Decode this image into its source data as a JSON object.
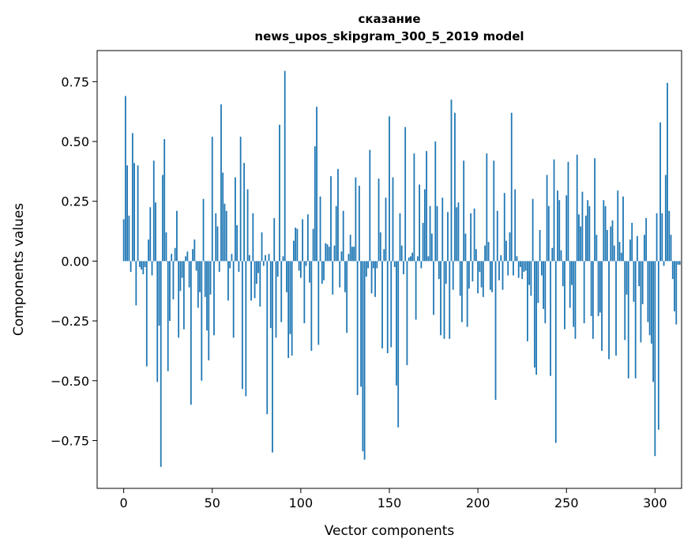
{
  "chart_data": {
    "type": "bar",
    "title": "сказание",
    "subtitle": "news_upos_skipgram_300_5_2019 model",
    "xlabel": "Vector components",
    "ylabel": "Components values",
    "xlim": [
      -15,
      315
    ],
    "ylim": [
      -0.95,
      0.88
    ],
    "xticks": [
      0,
      50,
      100,
      150,
      200,
      250,
      300
    ],
    "yticks": [
      -0.75,
      -0.5,
      -0.25,
      0.0,
      0.25,
      0.5,
      0.75
    ],
    "ytick_labels": [
      "−0.75",
      "−0.50",
      "−0.25",
      "0.00",
      "0.25",
      "0.50",
      "0.75"
    ],
    "bar_color": "#1f77b4",
    "grid": false,
    "values": [
      0.175,
      0.69,
      0.4,
      0.19,
      -0.045,
      0.535,
      0.41,
      -0.185,
      0.4,
      -0.025,
      -0.035,
      -0.055,
      -0.025,
      -0.44,
      0.09,
      0.225,
      -0.06,
      0.42,
      0.245,
      -0.505,
      -0.27,
      -0.86,
      0.36,
      0.51,
      0.12,
      -0.46,
      -0.25,
      0.03,
      -0.16,
      0.055,
      0.21,
      -0.32,
      -0.125,
      -0.07,
      -0.285,
      0.02,
      0.04,
      -0.11,
      -0.6,
      0.05,
      0.09,
      -0.04,
      -0.195,
      -0.13,
      -0.5,
      0.26,
      -0.15,
      -0.29,
      -0.415,
      -0.14,
      0.52,
      -0.31,
      0.2,
      0.145,
      -0.045,
      0.655,
      0.37,
      0.24,
      0.21,
      -0.165,
      -0.03,
      0.03,
      -0.32,
      0.35,
      0.15,
      -0.045,
      0.52,
      -0.535,
      0.41,
      -0.565,
      0.3,
      0.025,
      -0.165,
      0.2,
      -0.155,
      -0.095,
      -0.05,
      -0.19,
      0.12,
      -0.02,
      0.025,
      -0.64,
      0.03,
      -0.28,
      -0.8,
      0.18,
      -0.32,
      -0.065,
      0.57,
      -0.255,
      0.02,
      0.795,
      -0.13,
      -0.405,
      -0.305,
      -0.395,
      0.085,
      0.14,
      0.135,
      -0.04,
      -0.07,
      0.175,
      -0.26,
      -0.02,
      0.195,
      -0.09,
      -0.375,
      0.135,
      0.48,
      0.645,
      -0.35,
      0.27,
      -0.095,
      -0.08,
      0.075,
      0.07,
      0.06,
      0.355,
      -0.14,
      0.065,
      0.23,
      0.385,
      -0.11,
      0.04,
      0.21,
      -0.13,
      -0.3,
      0.03,
      0.11,
      0.06,
      0.06,
      0.35,
      -0.56,
      0.315,
      -0.525,
      -0.795,
      -0.83,
      -0.065,
      -0.03,
      0.465,
      -0.135,
      -0.03,
      -0.15,
      -0.03,
      0.345,
      0.12,
      -0.365,
      0.05,
      0.265,
      -0.385,
      0.605,
      -0.36,
      0.35,
      -0.025,
      -0.52,
      -0.695,
      0.2,
      0.065,
      -0.055,
      0.56,
      -0.435,
      0.015,
      0.02,
      0.035,
      0.45,
      -0.245,
      0.02,
      0.32,
      -0.03,
      0.16,
      0.3,
      0.46,
      0.02,
      0.23,
      0.115,
      -0.225,
      0.5,
      0.23,
      -0.075,
      -0.31,
      0.265,
      -0.325,
      -0.095,
      0.205,
      -0.325,
      0.675,
      -0.12,
      0.62,
      0.225,
      0.245,
      -0.145,
      -0.255,
      0.42,
      0.115,
      -0.275,
      -0.115,
      0.2,
      -0.085,
      0.22,
      0.05,
      -0.135,
      -0.045,
      -0.11,
      -0.15,
      0.065,
      0.45,
      0.08,
      -0.12,
      -0.13,
      0.42,
      -0.58,
      0.21,
      -0.08,
      0.025,
      -0.12,
      0.285,
      0.085,
      -0.06,
      0.12,
      0.62,
      -0.06,
      0.3,
      0.02,
      -0.07,
      -0.025,
      -0.075,
      -0.045,
      -0.04,
      -0.335,
      -0.1,
      -0.145,
      0.26,
      -0.445,
      -0.475,
      -0.175,
      0.13,
      -0.06,
      -0.2,
      -0.26,
      0.36,
      0.23,
      -0.48,
      0.055,
      0.425,
      -0.76,
      0.295,
      0.255,
      0.045,
      -0.105,
      -0.285,
      0.275,
      0.415,
      -0.195,
      -0.1,
      -0.275,
      -0.325,
      0.445,
      0.195,
      0.145,
      0.29,
      -0.26,
      0.19,
      0.255,
      0.23,
      -0.23,
      -0.325,
      0.43,
      0.11,
      -0.23,
      -0.215,
      -0.375,
      0.255,
      0.23,
      0.13,
      -0.41,
      0.145,
      0.17,
      0.065,
      -0.395,
      0.295,
      0.08,
      0.035,
      0.27,
      -0.33,
      -0.14,
      -0.49,
      0.09,
      0.16,
      -0.17,
      -0.49,
      0.105,
      -0.105,
      -0.34,
      -0.18,
      0.11,
      0.18,
      -0.255,
      -0.31,
      -0.345,
      -0.505,
      -0.815,
      0.2,
      -0.705,
      0.58,
      0.2,
      -0.02,
      0.36,
      0.745,
      0.21,
      0.11,
      -0.075,
      -0.21,
      -0.265,
      -0.015,
      -0.015
    ]
  }
}
